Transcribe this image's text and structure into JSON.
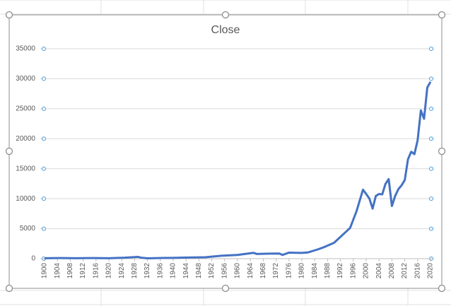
{
  "chart_data": {
    "type": "line",
    "title": "Close",
    "x": [
      1900,
      1905,
      1910,
      1915,
      1920,
      1925,
      1929,
      1930,
      1932,
      1937,
      1940,
      1945,
      1950,
      1955,
      1960,
      1965,
      1966,
      1970,
      1973,
      1974,
      1976,
      1980,
      1982,
      1985,
      1987,
      1990,
      1995,
      1997,
      1999,
      2000,
      2001,
      2002,
      2003,
      2004,
      2005,
      2006,
      2007,
      2008,
      2009,
      2010,
      2011,
      2012,
      2013,
      2014,
      2015,
      2016,
      2017,
      2018,
      2019,
      2020
    ],
    "series": [
      {
        "name": "Close",
        "color": "#4472c4",
        "values": [
          70,
          96,
          81,
          99,
          72,
          156,
          300,
          165,
          60,
          120,
          131,
          193,
          235,
          488,
          616,
          969,
          786,
          839,
          851,
          616,
          1005,
          964,
          1047,
          1547,
          1939,
          2634,
          5117,
          7908,
          11497,
          10787,
          10022,
          8342,
          10454,
          10783,
          10718,
          12463,
          13265,
          8776,
          10428,
          11578,
          12218,
          13104,
          16577,
          17823,
          17425,
          19763,
          24719,
          23327,
          28538,
          29500
        ]
      }
    ],
    "xlim": [
      1900,
      2020
    ],
    "xticks": [
      1900,
      1904,
      1908,
      1912,
      1916,
      1920,
      1924,
      1928,
      1932,
      1936,
      1940,
      1944,
      1948,
      1952,
      1956,
      1960,
      1964,
      1968,
      1972,
      1976,
      1980,
      1984,
      1988,
      1992,
      1996,
      2000,
      2004,
      2008,
      2012,
      2016,
      2020
    ],
    "ylim": [
      0,
      35000
    ],
    "yticks": [
      0,
      5000,
      10000,
      15000,
      20000,
      25000,
      30000,
      35000
    ],
    "grid": true
  }
}
